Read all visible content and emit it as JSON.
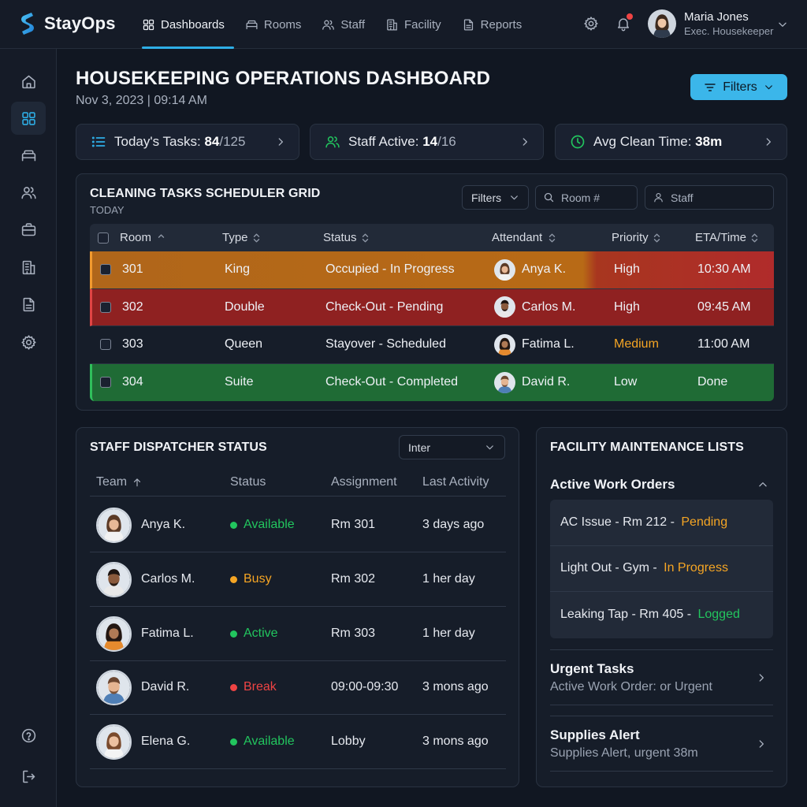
{
  "app": {
    "name": "StayOps"
  },
  "nav": {
    "items": [
      {
        "label": "Dashboards",
        "icon": "grid-icon",
        "active": true
      },
      {
        "label": "Rooms",
        "icon": "bed-icon",
        "active": false
      },
      {
        "label": "Staff",
        "icon": "users-icon",
        "active": false
      },
      {
        "label": "Facility",
        "icon": "building-icon",
        "active": false
      },
      {
        "label": "Reports",
        "icon": "document-icon",
        "active": false
      }
    ]
  },
  "user": {
    "name": "Maria Jones",
    "role": "Exec. Housekeeper"
  },
  "sidebar": {
    "items": [
      "home-icon",
      "grid-icon",
      "bed-icon",
      "users-icon",
      "briefcase-icon",
      "building-icon",
      "document-icon",
      "gear-icon"
    ],
    "bottom": [
      "help-icon",
      "logout-icon"
    ],
    "active_index": 1
  },
  "page": {
    "title": "HOUSEKEEPING OPERATIONS DASHBOARD",
    "date": "Nov 3, 2023 | 09:14 AM",
    "filters_label": "Filters"
  },
  "kpis": [
    {
      "label": "Today's Tasks:",
      "value": "84",
      "total": "/125",
      "icon": "list-icon",
      "color": "#2eaee6"
    },
    {
      "label": "Staff Active:",
      "value": "14",
      "total": "/16",
      "icon": "users-icon",
      "color": "#22c55e"
    },
    {
      "label": "Avg Clean Time:",
      "value": "38m",
      "total": "",
      "icon": "clock-icon",
      "color": "#22c55e"
    }
  ],
  "scheduler": {
    "title": "CLEANING TASKS SCHEDULER GRID",
    "subtitle": "TODAY",
    "filter_label": "Filters",
    "room_placeholder": "Room #",
    "staff_placeholder": "Staff",
    "columns": [
      "Room",
      "Type",
      "Status",
      "Attendant",
      "Priority",
      "ETA/Time"
    ],
    "rows": [
      {
        "room": "301",
        "type": "King",
        "status": "Occupied - In Progress",
        "attendant": "Anya K.",
        "priority": "High",
        "eta": "10:30 AM",
        "tone": "orange"
      },
      {
        "room": "302",
        "type": "Double",
        "status": "Check-Out - Pending",
        "attendant": "Carlos M.",
        "priority": "High",
        "eta": "09:45 AM",
        "tone": "red"
      },
      {
        "room": "303",
        "type": "Queen",
        "status": "Stayover - Scheduled",
        "attendant": "Fatima L.",
        "priority": "Medium",
        "eta": "11:00 AM",
        "tone": "none"
      },
      {
        "room": "304",
        "type": "Suite",
        "status": "Check-Out - Completed",
        "attendant": "David R.",
        "priority": "Low",
        "eta": "Done",
        "tone": "green"
      }
    ]
  },
  "staff": {
    "title": "STAFF DISPATCHER STATUS",
    "select_value": "Inter",
    "columns": [
      "Team",
      "Status",
      "Assignment",
      "Last Activity"
    ],
    "rows": [
      {
        "name": "Anya K.",
        "status": "Available",
        "status_color": "#22c55e",
        "assignment": "Rm 301",
        "last": "3 days ago"
      },
      {
        "name": "Carlos M.",
        "status": "Busy",
        "status_color": "#f5a524",
        "assignment": "Rm 302",
        "last": "1 her day"
      },
      {
        "name": "Fatima L.",
        "status": "Active",
        "status_color": "#22c55e",
        "assignment": "Rm 303",
        "last": "1 her day"
      },
      {
        "name": "David R.",
        "status": "Break",
        "status_color": "#ef4444",
        "assignment": "09:00-09:30",
        "last": "3 mons ago"
      },
      {
        "name": "Elena G.",
        "status": "Available",
        "status_color": "#22c55e",
        "assignment": "Lobby",
        "last": "3 mons ago"
      }
    ]
  },
  "facility": {
    "title": "FACILITY MAINTENANCE LISTS",
    "work_orders_title": "Active Work Orders",
    "work_orders": [
      {
        "text": "AC Issue - Rm 212 - ",
        "status": "Pending",
        "status_color": "#f5a524"
      },
      {
        "text": "Light Out - Gym - ",
        "status": "In Progress",
        "status_color": "#f5a524"
      },
      {
        "text": "Leaking Tap - Rm 405 - ",
        "status": "Logged",
        "status_color": "#22c55e"
      }
    ],
    "sections": [
      {
        "title": "Urgent Tasks",
        "subtitle": "Active Work Order: or Urgent"
      },
      {
        "title": "Supplies Alert",
        "subtitle": "Supplies Alert, urgent 38m"
      }
    ]
  },
  "colors": {
    "accent": "#2eaee6",
    "row_orange": "#b86a16",
    "row_red": "#8f2121",
    "row_green": "#1f6b35",
    "high_red": "#b42a2a",
    "medium_amber": "#f5a524"
  }
}
